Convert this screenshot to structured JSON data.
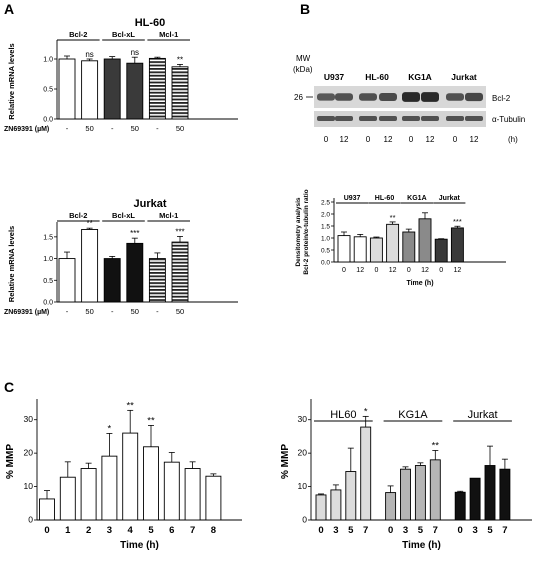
{
  "panel_letters": [
    "A",
    "B",
    "C"
  ],
  "colors": {
    "white": "#ffffff",
    "dark": "#3a3a3a",
    "black": "#111111",
    "light_gray": "#dcdcdc",
    "mid_gray": "#b5b5b5",
    "gray": "#8a8a8a",
    "band": "#1a1a1a"
  },
  "western_blot": {
    "mw_label": "MW",
    "kda_label": "(kDa)",
    "marker": "26",
    "cell_lines": [
      "U937",
      "HL-60",
      "KG1A",
      "Jurkat"
    ],
    "bands": [
      "Bcl-2",
      "α-Tubulin"
    ],
    "band_intensity_bcl2": [
      0.55,
      0.6,
      0.6,
      0.65,
      0.95,
      0.95,
      0.6,
      0.7
    ],
    "lane_labels": [
      "0",
      "12",
      "0",
      "12",
      "0",
      "12",
      "0",
      "12"
    ],
    "time_unit": "(h)"
  },
  "chart_data": [
    {
      "id": "A-HL60",
      "type": "bar",
      "title": "HL-60",
      "ylabel": "Relative mRNA levels",
      "ylim": [
        0,
        1.25
      ],
      "yticks": [
        "0.0",
        "0.5",
        "1.0"
      ],
      "ytick_values": [
        0,
        0.5,
        1.0
      ],
      "row_label": "ZN69391 (µM)",
      "groups": [
        "Bcl-2",
        "Bcl-xL",
        "Mcl-1"
      ],
      "categories": [
        "-",
        "50",
        "-",
        "50",
        "-",
        "50"
      ],
      "values": [
        1.0,
        0.97,
        1.0,
        0.93,
        1.01,
        0.87
      ],
      "errors": [
        0.05,
        0.03,
        0.04,
        0.1,
        0.02,
        0.04
      ],
      "fills": [
        "white",
        "white",
        "dark",
        "dark",
        "stripe",
        "stripe"
      ],
      "annotations": [
        "",
        "ns",
        "",
        "ns",
        "",
        "**"
      ]
    },
    {
      "id": "A-Jurkat",
      "type": "bar",
      "title": "Jurkat",
      "ylabel": "Relative mRNA levels",
      "ylim": [
        0,
        1.75
      ],
      "yticks": [
        "0.0",
        "0.5",
        "1.0",
        "1.5"
      ],
      "ytick_values": [
        0,
        0.5,
        1.0,
        1.5
      ],
      "row_label": "ZN69391 (µM)",
      "groups": [
        "Bcl-2",
        "Bcl-xL",
        "Mcl-1"
      ],
      "categories": [
        "-",
        "50",
        "-",
        "50",
        "-",
        "50"
      ],
      "values": [
        1.0,
        1.67,
        1.0,
        1.35,
        1.0,
        1.38
      ],
      "errors": [
        0.15,
        0.03,
        0.05,
        0.12,
        0.13,
        0.13
      ],
      "fills": [
        "white",
        "white",
        "black",
        "black",
        "stripe",
        "stripe"
      ],
      "annotations": [
        "",
        "**",
        "",
        "***",
        "",
        "***"
      ]
    },
    {
      "id": "B-densitometry",
      "type": "bar",
      "ylabel_lines": [
        "Densitometry analysis",
        "Bcl-2 protein/α-tubulin ratio"
      ],
      "xlabel": "Time (h)",
      "ylim": [
        0,
        2.5
      ],
      "yticks": [
        "0.0",
        "0.5",
        "1.0",
        "1.5",
        "2.0",
        "2.5"
      ],
      "ytick_values": [
        0,
        0.5,
        1.0,
        1.5,
        2.0,
        2.5
      ],
      "groups": [
        "U937",
        "HL-60",
        "KG1A",
        "Jurkat"
      ],
      "categories": [
        "0",
        "12",
        "0",
        "12",
        "0",
        "12",
        "0",
        "12"
      ],
      "values": [
        1.1,
        1.05,
        1.0,
        1.57,
        1.25,
        1.8,
        0.95,
        1.42
      ],
      "errors": [
        0.15,
        0.1,
        0.04,
        0.1,
        0.12,
        0.25,
        0.02,
        0.07
      ],
      "fills": [
        "white",
        "white",
        "light_gray",
        "light_gray",
        "gray",
        "gray",
        "dark",
        "dark"
      ],
      "annotations": [
        "",
        "",
        "",
        "**",
        "",
        "",
        "",
        "***"
      ]
    },
    {
      "id": "C-left",
      "type": "bar",
      "ylabel": "% MMP",
      "xlabel": "Time (h)",
      "ylim": [
        0,
        35
      ],
      "yticks": [
        "0",
        "10",
        "20",
        "30"
      ],
      "ytick_values": [
        0,
        10,
        20,
        30
      ],
      "categories": [
        "0",
        "1",
        "2",
        "3",
        "4",
        "5",
        "6",
        "7",
        "8"
      ],
      "values": [
        6.3,
        12.8,
        15.4,
        19.1,
        26.0,
        21.9,
        17.3,
        15.4,
        13.1
      ],
      "errors": [
        2.5,
        4.6,
        1.6,
        6.8,
        6.8,
        6.4,
        2.9,
        2.0,
        0.7
      ],
      "fills": [
        "white",
        "white",
        "white",
        "white",
        "white",
        "white",
        "white",
        "white",
        "white"
      ],
      "annotations": [
        "",
        "",
        "",
        "*",
        "**",
        "**",
        "",
        "",
        ""
      ]
    },
    {
      "id": "C-right",
      "type": "bar",
      "ylabel": "% MMP",
      "xlabel": "Time (h)",
      "ylim": [
        0,
        35
      ],
      "yticks": [
        "0",
        "10",
        "20",
        "30"
      ],
      "ytick_values": [
        0,
        10,
        20,
        30
      ],
      "groups": [
        "HL60",
        "KG1A",
        "Jurkat"
      ],
      "categories": [
        "0",
        "3",
        "5",
        "7",
        "0",
        "3",
        "5",
        "7",
        "0",
        "3",
        "5",
        "7"
      ],
      "values": [
        7.5,
        9.0,
        14.5,
        27.8,
        8.2,
        15.2,
        16.3,
        18.0,
        8.3,
        12.5,
        16.3,
        15.2
      ],
      "errors": [
        0.3,
        1.5,
        7.0,
        3.2,
        2.0,
        0.7,
        0.8,
        2.8,
        0.3,
        0.0,
        5.8,
        3.0
      ],
      "fills": [
        "light_gray",
        "light_gray",
        "light_gray",
        "light_gray",
        "mid_gray",
        "mid_gray",
        "mid_gray",
        "mid_gray",
        "black",
        "black",
        "black",
        "black"
      ],
      "annotations": [
        "",
        "",
        "",
        "*",
        "",
        "",
        "",
        "**",
        "",
        "",
        "",
        ""
      ]
    }
  ]
}
